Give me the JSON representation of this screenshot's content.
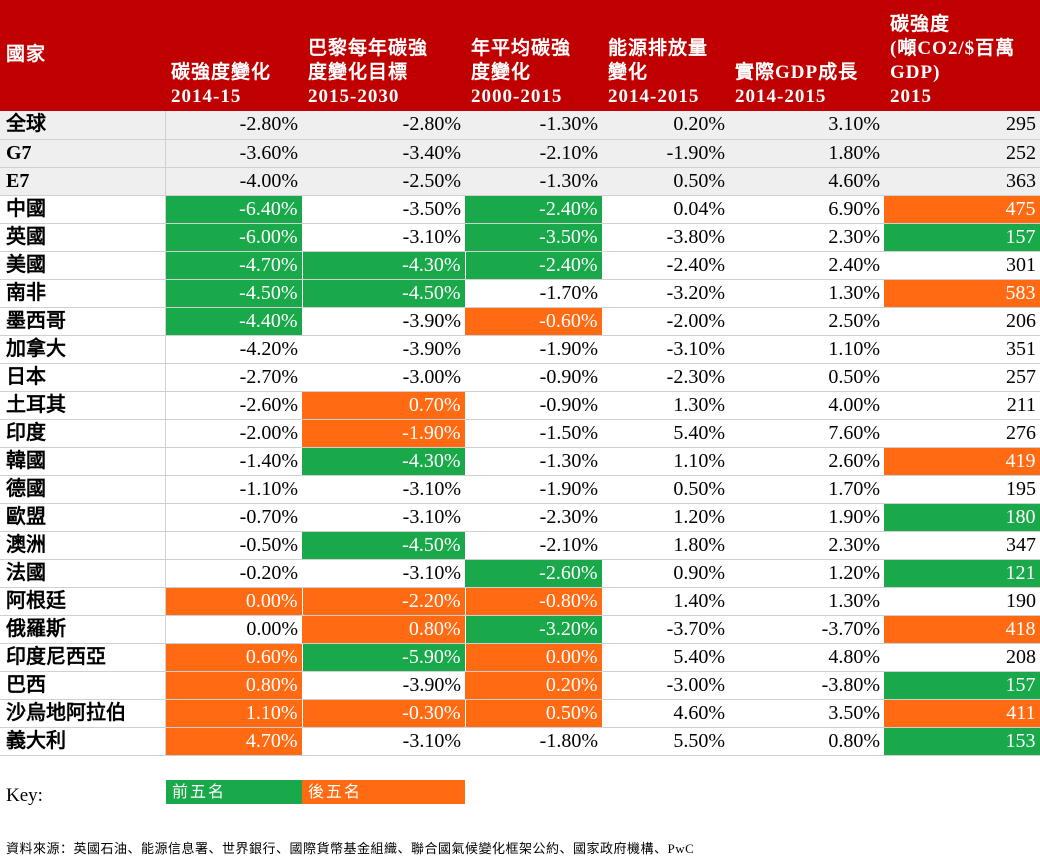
{
  "colors": {
    "header": "#c00000",
    "top_five": "#19a94a",
    "bottom_five": "#ff6a13",
    "aggregate_row": "#efefef"
  },
  "headers": [
    "國家",
    "碳強度變化\n2014-15",
    "巴黎每年碳強\n度變化目標\n2015-2030",
    "年平均碳強\n度變化\n2000-2015",
    "能源排放量\n變化\n2014-2015",
    "實際GDP成長\n2014-2015",
    "碳強度\n(噸CO2/$百萬\nGDP)\n2015"
  ],
  "rows": [
    {
      "name": "全球",
      "agg": true,
      "cells": [
        [
          "-2.80%",
          ""
        ],
        [
          "-2.80%",
          ""
        ],
        [
          "-1.30%",
          ""
        ],
        [
          "0.20%",
          ""
        ],
        [
          "3.10%",
          ""
        ],
        [
          "295",
          ""
        ]
      ]
    },
    {
      "name": "G7",
      "agg": true,
      "cells": [
        [
          "-3.60%",
          ""
        ],
        [
          "-3.40%",
          ""
        ],
        [
          "-2.10%",
          ""
        ],
        [
          "-1.90%",
          ""
        ],
        [
          "1.80%",
          ""
        ],
        [
          "252",
          ""
        ]
      ]
    },
    {
      "name": "E7",
      "agg": true,
      "cells": [
        [
          "-4.00%",
          ""
        ],
        [
          "-2.50%",
          ""
        ],
        [
          "-1.30%",
          ""
        ],
        [
          "0.50%",
          ""
        ],
        [
          "4.60%",
          ""
        ],
        [
          "363",
          ""
        ]
      ]
    },
    {
      "name": "中國",
      "cells": [
        [
          "-6.40%",
          "g"
        ],
        [
          "-3.50%",
          ""
        ],
        [
          "-2.40%",
          "g"
        ],
        [
          "0.04%",
          ""
        ],
        [
          "6.90%",
          ""
        ],
        [
          "475",
          "o"
        ]
      ]
    },
    {
      "name": "英國",
      "cells": [
        [
          "-6.00%",
          "g"
        ],
        [
          "-3.10%",
          ""
        ],
        [
          "-3.50%",
          "g"
        ],
        [
          "-3.80%",
          ""
        ],
        [
          "2.30%",
          ""
        ],
        [
          "157",
          "g"
        ]
      ]
    },
    {
      "name": "美國",
      "cells": [
        [
          "-4.70%",
          "g"
        ],
        [
          "-4.30%",
          "g"
        ],
        [
          "-2.40%",
          "g"
        ],
        [
          "-2.40%",
          ""
        ],
        [
          "2.40%",
          ""
        ],
        [
          "301",
          ""
        ]
      ]
    },
    {
      "name": "南非",
      "cells": [
        [
          "-4.50%",
          "g"
        ],
        [
          "-4.50%",
          "g"
        ],
        [
          "-1.70%",
          ""
        ],
        [
          "-3.20%",
          ""
        ],
        [
          "1.30%",
          ""
        ],
        [
          "583",
          "o"
        ]
      ]
    },
    {
      "name": "墨西哥",
      "cells": [
        [
          "-4.40%",
          "g"
        ],
        [
          "-3.90%",
          ""
        ],
        [
          "-0.60%",
          "o"
        ],
        [
          "-2.00%",
          ""
        ],
        [
          "2.50%",
          ""
        ],
        [
          "206",
          ""
        ]
      ]
    },
    {
      "name": "加拿大",
      "cells": [
        [
          "-4.20%",
          ""
        ],
        [
          "-3.90%",
          ""
        ],
        [
          "-1.90%",
          ""
        ],
        [
          "-3.10%",
          ""
        ],
        [
          "1.10%",
          ""
        ],
        [
          "351",
          ""
        ]
      ]
    },
    {
      "name": "日本",
      "cells": [
        [
          "-2.70%",
          ""
        ],
        [
          "-3.00%",
          ""
        ],
        [
          "-0.90%",
          ""
        ],
        [
          "-2.30%",
          ""
        ],
        [
          "0.50%",
          ""
        ],
        [
          "257",
          ""
        ]
      ]
    },
    {
      "name": "土耳其",
      "cells": [
        [
          "-2.60%",
          ""
        ],
        [
          "0.70%",
          "o"
        ],
        [
          "-0.90%",
          ""
        ],
        [
          "1.30%",
          ""
        ],
        [
          "4.00%",
          ""
        ],
        [
          "211",
          ""
        ]
      ]
    },
    {
      "name": "印度",
      "cells": [
        [
          "-2.00%",
          ""
        ],
        [
          "-1.90%",
          "o"
        ],
        [
          "-1.50%",
          ""
        ],
        [
          "5.40%",
          ""
        ],
        [
          "7.60%",
          ""
        ],
        [
          "276",
          ""
        ]
      ]
    },
    {
      "name": "韓國",
      "cells": [
        [
          "-1.40%",
          ""
        ],
        [
          "-4.30%",
          "g"
        ],
        [
          "-1.30%",
          ""
        ],
        [
          "1.10%",
          ""
        ],
        [
          "2.60%",
          ""
        ],
        [
          "419",
          "o"
        ]
      ]
    },
    {
      "name": "德國",
      "cells": [
        [
          "-1.10%",
          ""
        ],
        [
          "-3.10%",
          ""
        ],
        [
          "-1.90%",
          ""
        ],
        [
          "0.50%",
          ""
        ],
        [
          "1.70%",
          ""
        ],
        [
          "195",
          ""
        ]
      ]
    },
    {
      "name": "歐盟",
      "cells": [
        [
          "-0.70%",
          ""
        ],
        [
          "-3.10%",
          ""
        ],
        [
          "-2.30%",
          ""
        ],
        [
          "1.20%",
          ""
        ],
        [
          "1.90%",
          ""
        ],
        [
          "180",
          "g"
        ]
      ]
    },
    {
      "name": "澳洲",
      "cells": [
        [
          "-0.50%",
          ""
        ],
        [
          "-4.50%",
          "g"
        ],
        [
          "-2.10%",
          ""
        ],
        [
          "1.80%",
          ""
        ],
        [
          "2.30%",
          ""
        ],
        [
          "347",
          ""
        ]
      ]
    },
    {
      "name": "法國",
      "cells": [
        [
          "-0.20%",
          ""
        ],
        [
          "-3.10%",
          ""
        ],
        [
          "-2.60%",
          "g"
        ],
        [
          "0.90%",
          ""
        ],
        [
          "1.20%",
          ""
        ],
        [
          "121",
          "g"
        ]
      ]
    },
    {
      "name": "阿根廷",
      "cells": [
        [
          "0.00%",
          "o"
        ],
        [
          "-2.20%",
          "o"
        ],
        [
          "-0.80%",
          "o"
        ],
        [
          "1.40%",
          ""
        ],
        [
          "1.30%",
          ""
        ],
        [
          "190",
          ""
        ]
      ]
    },
    {
      "name": "俄羅斯",
      "cells": [
        [
          "0.00%",
          ""
        ],
        [
          "0.80%",
          "o"
        ],
        [
          "-3.20%",
          "g"
        ],
        [
          "-3.70%",
          ""
        ],
        [
          "-3.70%",
          ""
        ],
        [
          "418",
          "o"
        ]
      ]
    },
    {
      "name": "印度尼西亞",
      "cells": [
        [
          "0.60%",
          "o"
        ],
        [
          "-5.90%",
          "g"
        ],
        [
          "0.00%",
          "o"
        ],
        [
          "5.40%",
          ""
        ],
        [
          "4.80%",
          ""
        ],
        [
          "208",
          ""
        ]
      ]
    },
    {
      "name": "巴西",
      "cells": [
        [
          "0.80%",
          "o"
        ],
        [
          "-3.90%",
          ""
        ],
        [
          "0.20%",
          "o"
        ],
        [
          "-3.00%",
          ""
        ],
        [
          "-3.80%",
          ""
        ],
        [
          "157",
          "g"
        ]
      ]
    },
    {
      "name": "沙烏地阿拉伯",
      "cells": [
        [
          "1.10%",
          "o"
        ],
        [
          "-0.30%",
          "o"
        ],
        [
          "0.50%",
          "o"
        ],
        [
          "4.60%",
          ""
        ],
        [
          "3.50%",
          ""
        ],
        [
          "411",
          "o"
        ]
      ]
    },
    {
      "name": "義大利",
      "cells": [
        [
          "4.70%",
          "o"
        ],
        [
          "-3.10%",
          ""
        ],
        [
          "-1.80%",
          ""
        ],
        [
          "5.50%",
          ""
        ],
        [
          "0.80%",
          ""
        ],
        [
          "153",
          "g"
        ]
      ]
    }
  ],
  "key": {
    "label": "Key:",
    "top_five": "前五名",
    "bottom_five": "後五名"
  },
  "source": "資料來源：英國石油、能源信息署、世界銀行、國際貨幣基金組織、聯合國氣候變化框架公約、國家政府機構、PwC"
}
